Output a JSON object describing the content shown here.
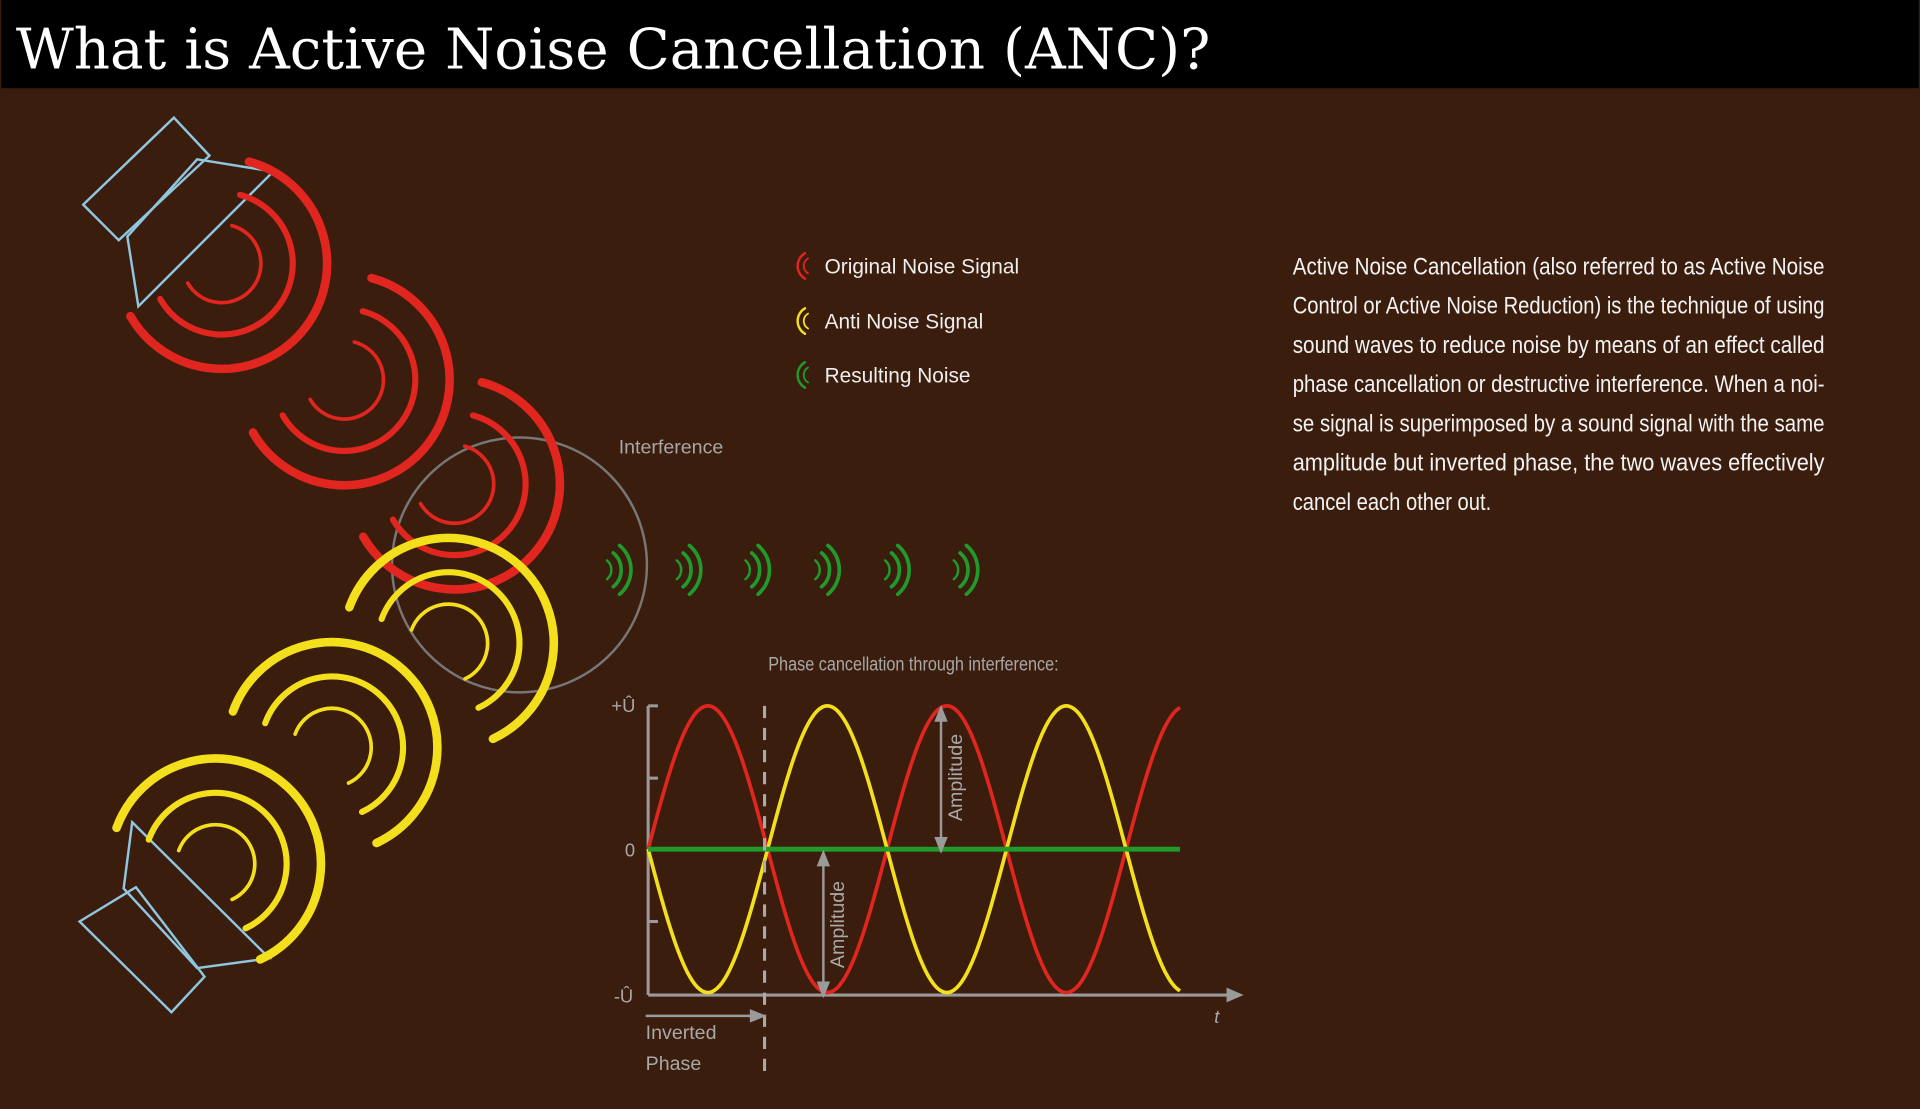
{
  "header": {
    "title": "What is Active Noise Cancellation (ANC)?"
  },
  "legend": [
    {
      "label": "Original Noise Signal",
      "color": "#e1251f"
    },
    {
      "label": "Anti Noise Signal",
      "color": "#f3df1b"
    },
    {
      "label": "Resulting Noise",
      "color": "#1f9a2b"
    }
  ],
  "interference_label": "Interference",
  "description": [
    "Active Noise Cancellation (also referred to as Active Noise",
    "Control or Active Noise Reduction) is the technique of using",
    "sound waves to reduce noise by means of an effect called",
    "phase cancellation or destructive interference. When a noi-",
    "se signal is superimposed by a sound signal with the same",
    "amplitude but inverted phase, the two waves effectively",
    "cancel each other out."
  ],
  "waveform": {
    "title": "Phase cancellation through interference:",
    "y_ticks": [
      "+Û",
      "0",
      "-Û"
    ],
    "x_label": "t",
    "amplitude_label": "Amplitude",
    "inverted_phase_label": [
      "Inverted",
      "Phase"
    ],
    "series": [
      {
        "color": "#e1251f"
      },
      {
        "color": "#f3df1b"
      },
      {
        "color": "#1f9a2b"
      }
    ]
  },
  "colors": {
    "background": "#3b1d0e",
    "header": "#000000",
    "speaker": "#8fc6e0",
    "axis": "#9a9a9a"
  }
}
